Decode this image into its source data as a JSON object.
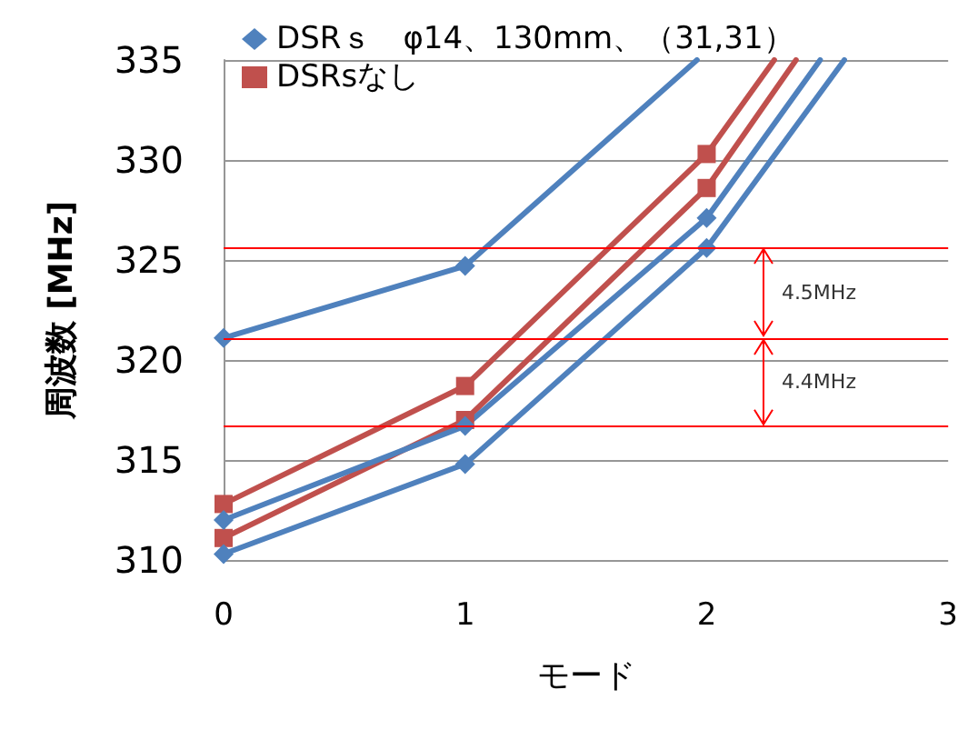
{
  "chart_data": {
    "type": "line",
    "xlabel": "モード",
    "ylabel": "周波数 [MHz]",
    "xlim": [
      0,
      3
    ],
    "xticks": [
      0,
      1,
      2,
      3
    ],
    "ylim": [
      310,
      335
    ],
    "yticks": [
      310,
      315,
      320,
      325,
      330,
      335
    ],
    "grid": "y",
    "legend": "top left",
    "series": [
      {
        "name": "DSRｓ　φ14、130mm、（31,31）",
        "color": "#4f81bd",
        "marker": "diamond",
        "x": [
          0,
          1,
          1.96
        ],
        "values": [
          321.1,
          324.7,
          335
        ]
      },
      {
        "name": "DSRsなし",
        "color": "#c0504d",
        "marker": "square",
        "x": [
          0,
          1,
          2,
          2.28
        ],
        "values": [
          312.8,
          318.7,
          330.3,
          335
        ]
      },
      {
        "color": "#c0504d",
        "marker": "square",
        "x": [
          0,
          1,
          2,
          2.37
        ],
        "values": [
          311.1,
          317.0,
          328.6,
          335
        ]
      },
      {
        "color": "#4f81bd",
        "marker": "diamond",
        "x": [
          0,
          1,
          2,
          2.47
        ],
        "values": [
          312.0,
          316.7,
          327.1,
          335
        ]
      },
      {
        "color": "#4f81bd",
        "marker": "diamond",
        "x": [
          0,
          1,
          2,
          2.57
        ],
        "values": [
          310.3,
          314.8,
          325.6,
          335
        ]
      }
    ],
    "ref_lines": [
      {
        "axis": "y",
        "value": 325.6,
        "color": "#ff0000"
      },
      {
        "axis": "y",
        "value": 321.1,
        "color": "#ff0000"
      },
      {
        "axis": "y",
        "value": 316.7,
        "color": "#ff0000"
      }
    ],
    "annotations": [
      "4.5MHz",
      "4.4MHz"
    ]
  }
}
